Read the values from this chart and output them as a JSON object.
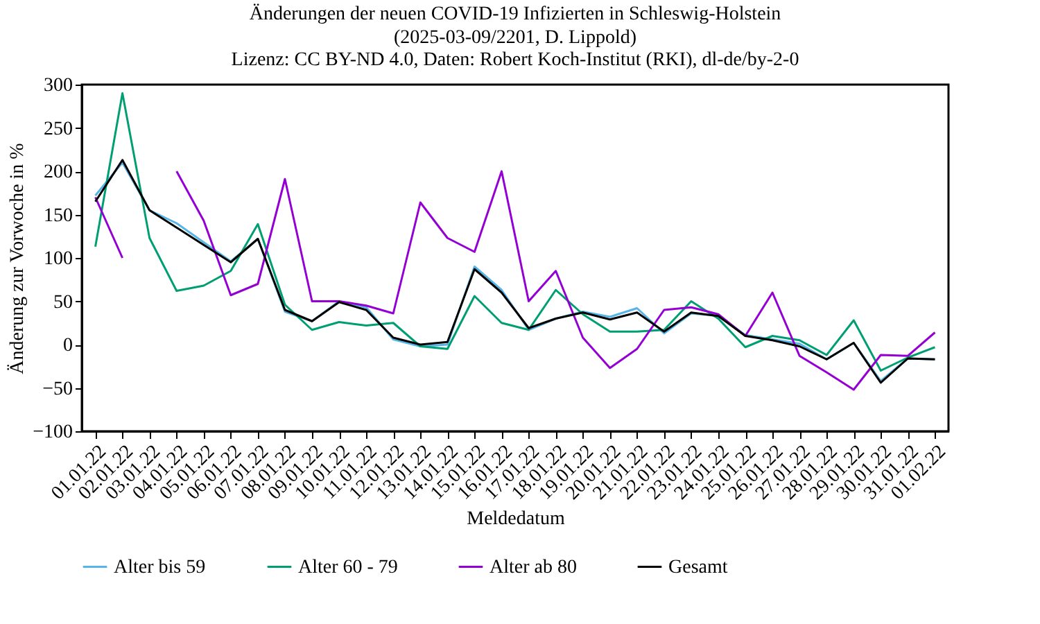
{
  "chart_data": {
    "type": "line",
    "title": "Änderungen der neuen COVID-19 Infizierten in Schleswig-Holstein",
    "subtitle": "(2025-03-09/2201, D. Lippold)\nLizenz: CC BY-ND 4.0, Daten: Robert Koch-Institut (RKI), dl-de/by-2-0",
    "xlabel": "Meldedatum",
    "ylabel": "Änderung zur Vorwoche in %",
    "categories": [
      "01.01.22",
      "02.01.22",
      "03.01.22",
      "04.01.22",
      "05.01.22",
      "06.01.22",
      "07.01.22",
      "08.01.22",
      "09.01.22",
      "10.01.22",
      "11.01.22",
      "12.01.22",
      "13.01.22",
      "14.01.22",
      "15.01.22",
      "16.01.22",
      "17.01.22",
      "18.01.22",
      "19.01.22",
      "20.01.22",
      "21.01.22",
      "22.01.22",
      "23.01.22",
      "24.01.22",
      "25.01.22",
      "26.01.22",
      "27.01.22",
      "28.01.22",
      "29.01.22",
      "30.01.22",
      "31.01.22",
      "01.02.22"
    ],
    "series": [
      {
        "name": "Alter bis 59",
        "color": "#56b4e9",
        "values": [
          172,
          210,
          155,
          140,
          118,
          96,
          122,
          38,
          27,
          50,
          43,
          6,
          -2,
          0,
          90,
          63,
          17,
          30,
          38,
          32,
          42,
          13,
          36,
          33,
          11,
          6,
          1,
          -17,
          2,
          -42,
          -16,
          -17
        ]
      },
      {
        "name": "Alter 60 - 79",
        "color": "#009e73",
        "values": [
          113,
          290,
          123,
          62,
          68,
          85,
          139,
          46,
          17,
          26,
          22,
          25,
          -2,
          -5,
          56,
          25,
          17,
          63,
          35,
          15,
          15,
          17,
          50,
          30,
          -3,
          10,
          5,
          -12,
          28,
          -30,
          -15,
          -3
        ]
      },
      {
        "name": "Alter ab 80",
        "color": "#9400d3",
        "values": [
          170,
          100,
          null,
          200,
          143,
          57,
          70,
          191,
          50,
          50,
          45,
          36,
          164,
          123,
          107,
          200,
          50,
          85,
          8,
          -27,
          -5,
          40,
          43,
          35,
          10,
          60,
          -13,
          -32,
          -52,
          -12,
          -13,
          14
        ]
      },
      {
        "name": "Gesamt",
        "color": "#000000",
        "values": [
          165,
          213,
          155,
          135,
          115,
          95,
          122,
          40,
          27,
          49,
          40,
          8,
          0,
          3,
          87,
          60,
          19,
          30,
          37,
          29,
          37,
          15,
          37,
          33,
          10,
          5,
          -2,
          -17,
          2,
          -44,
          -16,
          -17
        ]
      }
    ],
    "ylim": [
      -100,
      300
    ],
    "yticks": [
      -100,
      -50,
      0,
      50,
      100,
      150,
      200,
      250,
      300
    ],
    "grid": false,
    "legend": "bottom",
    "marker": "none",
    "line_style": "solid"
  }
}
